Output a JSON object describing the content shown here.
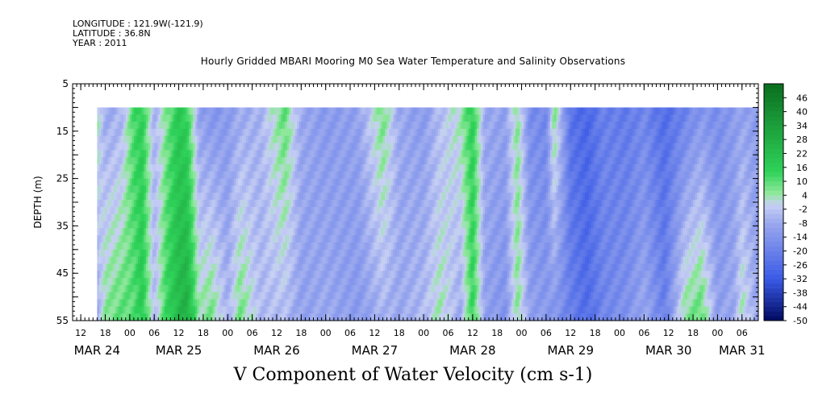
{
  "metadata": {
    "longitude": "LONGITUDE : 121.9W(-121.9)",
    "latitude": "LATITUDE : 36.8N",
    "year": "YEAR : 2011"
  },
  "title": "Hourly Gridded MBARI Mooring M0 Sea Water Temperature and Salinity Observations",
  "bottom_title": "V Component of Water Velocity (cm s-1)",
  "chart_data": {
    "type": "heatmap",
    "title": "Hourly Gridded MBARI Mooring M0 Sea Water Temperature and Salinity Observations",
    "xlabel": "",
    "ylabel": "DEPTH (m)",
    "colorbar_label": "V Component of Water Velocity (cm s-1)",
    "yrange": [
      5,
      55
    ],
    "y_inverted": true,
    "yticks": [
      5,
      15,
      25,
      35,
      45,
      55
    ],
    "data_depth_range": [
      10,
      55
    ],
    "x_start_hour": 10,
    "x_end_hour": 178,
    "data_start_hour": 16,
    "x_hour_ticks": [
      "12",
      "18",
      "00",
      "06",
      "12",
      "18",
      "00",
      "06",
      "12",
      "18",
      "00",
      "06",
      "12",
      "18",
      "00",
      "06",
      "12",
      "18",
      "00",
      "06",
      "12",
      "18",
      "00",
      "06",
      "12",
      "18",
      "00",
      "06"
    ],
    "x_hour_tick_values": [
      12,
      18,
      24,
      30,
      36,
      42,
      48,
      54,
      60,
      66,
      72,
      78,
      84,
      90,
      96,
      102,
      108,
      114,
      120,
      126,
      132,
      138,
      144,
      150,
      156,
      162,
      168,
      174
    ],
    "x_date_labels": [
      {
        "label": "MAR 24",
        "hour": 16
      },
      {
        "label": "MAR 25",
        "hour": 36
      },
      {
        "label": "MAR 26",
        "hour": 60
      },
      {
        "label": "MAR 27",
        "hour": 84
      },
      {
        "label": "MAR 28",
        "hour": 108
      },
      {
        "label": "MAR 29",
        "hour": 132
      },
      {
        "label": "MAR 30",
        "hour": 156
      },
      {
        "label": "MAR 31",
        "hour": 174
      }
    ],
    "colorbar_levels": [
      "46",
      "40",
      "34",
      "28",
      "22",
      "16",
      "10",
      "4",
      "-2",
      "-8",
      "-14",
      "-20",
      "-26",
      "-32",
      "-38",
      "-44",
      "-50"
    ],
    "colorbar_range": [
      -50,
      52
    ],
    "colors": {
      "strong_positive": "#0a6e1e",
      "positive": "#2fd35a",
      "weak_positive": "#8ee89a",
      "zero": "#c8d0f4",
      "weak_negative": "#9aa8ee",
      "negative": "#3a5ae6",
      "strong_negative": "#000a60"
    },
    "velocity_profile_by_hour": [
      {
        "hour": 16,
        "v_surface": 4,
        "v_bottom": -8
      },
      {
        "hour": 18,
        "v_surface": -8,
        "v_bottom": 6
      },
      {
        "hour": 22,
        "v_surface": -6,
        "v_bottom": 10
      },
      {
        "hour": 25,
        "v_surface": 12,
        "v_bottom": 10
      },
      {
        "hour": 27,
        "v_surface": 16,
        "v_bottom": 18
      },
      {
        "hour": 30,
        "v_surface": -6,
        "v_bottom": -4
      },
      {
        "hour": 33,
        "v_surface": 6,
        "v_bottom": 14
      },
      {
        "hour": 36,
        "v_surface": 18,
        "v_bottom": 24
      },
      {
        "hour": 38,
        "v_surface": 14,
        "v_bottom": 28
      },
      {
        "hour": 41,
        "v_surface": -10,
        "v_bottom": 4
      },
      {
        "hour": 44,
        "v_surface": -14,
        "v_bottom": 8
      },
      {
        "hour": 48,
        "v_surface": -12,
        "v_bottom": -6
      },
      {
        "hour": 51,
        "v_surface": -8,
        "v_bottom": 8
      },
      {
        "hour": 56,
        "v_surface": -6,
        "v_bottom": -4
      },
      {
        "hour": 62,
        "v_surface": 10,
        "v_bottom": -4
      },
      {
        "hour": 66,
        "v_surface": -8,
        "v_bottom": -10
      },
      {
        "hour": 72,
        "v_surface": -12,
        "v_bottom": -8
      },
      {
        "hour": 80,
        "v_surface": -10,
        "v_bottom": -12
      },
      {
        "hour": 86,
        "v_surface": 8,
        "v_bottom": -6
      },
      {
        "hour": 90,
        "v_surface": -8,
        "v_bottom": -8
      },
      {
        "hour": 96,
        "v_surface": -12,
        "v_bottom": -4
      },
      {
        "hour": 100,
        "v_surface": -4,
        "v_bottom": 4
      },
      {
        "hour": 105,
        "v_surface": 4,
        "v_bottom": -8
      },
      {
        "hour": 108,
        "v_surface": 16,
        "v_bottom": 14
      },
      {
        "hour": 111,
        "v_surface": -8,
        "v_bottom": -10
      },
      {
        "hour": 116,
        "v_surface": -10,
        "v_bottom": -14
      },
      {
        "hour": 119,
        "v_surface": 6,
        "v_bottom": 6
      },
      {
        "hour": 122,
        "v_surface": -16,
        "v_bottom": -10
      },
      {
        "hour": 126,
        "v_surface": -18,
        "v_bottom": -12
      },
      {
        "hour": 128,
        "v_surface": 8,
        "v_bottom": -14
      },
      {
        "hour": 132,
        "v_surface": -24,
        "v_bottom": -20
      },
      {
        "hour": 136,
        "v_surface": -28,
        "v_bottom": -26
      },
      {
        "hour": 140,
        "v_surface": -20,
        "v_bottom": -18
      },
      {
        "hour": 146,
        "v_surface": -22,
        "v_bottom": -14
      },
      {
        "hour": 150,
        "v_surface": -18,
        "v_bottom": -8
      },
      {
        "hour": 155,
        "v_surface": -26,
        "v_bottom": -20
      },
      {
        "hour": 160,
        "v_surface": -20,
        "v_bottom": 6
      },
      {
        "hour": 164,
        "v_surface": -14,
        "v_bottom": 10
      },
      {
        "hour": 168,
        "v_surface": -16,
        "v_bottom": -10
      },
      {
        "hour": 172,
        "v_surface": -12,
        "v_bottom": -8
      },
      {
        "hour": 174,
        "v_surface": -10,
        "v_bottom": 4
      },
      {
        "hour": 178,
        "v_surface": -12,
        "v_bottom": -10
      }
    ]
  }
}
